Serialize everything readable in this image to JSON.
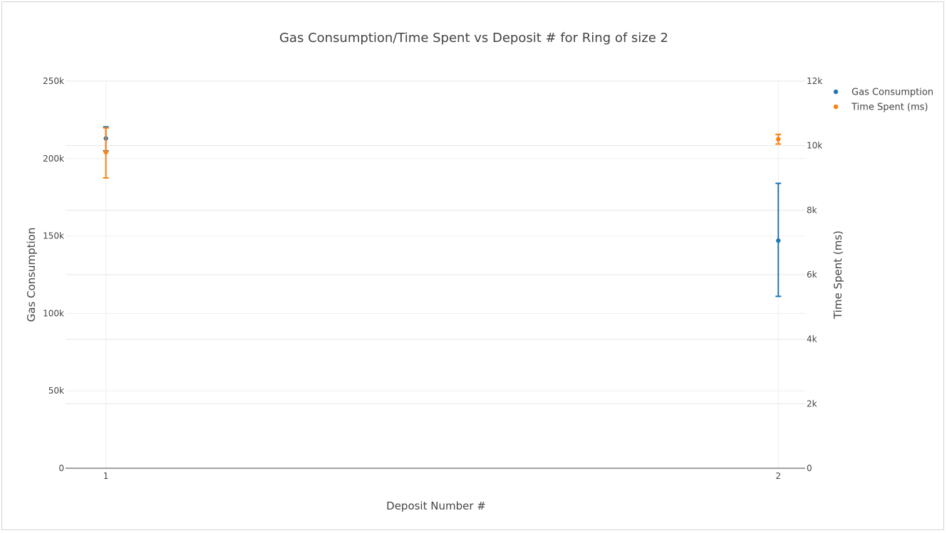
{
  "chart_data": {
    "type": "scatter",
    "title": "Gas Consumption/Time Spent vs Deposit # for Ring of size 2",
    "xlabel": "Deposit Number #",
    "ylabel": "Gas Consumption",
    "y2label": "Time Spent (ms)",
    "x_ticks": [
      "1",
      "2"
    ],
    "y_ticks": [
      "0",
      "50k",
      "100k",
      "150k",
      "200k",
      "250k"
    ],
    "y2_ticks": [
      "0",
      "2k",
      "4k",
      "6k",
      "8k",
      "10k",
      "12k"
    ],
    "ylim": [
      0,
      250000
    ],
    "y2lim": [
      0,
      12000
    ],
    "xlim": [
      0.94,
      2.04
    ],
    "grid": true,
    "legend_position": "top-right",
    "series": [
      {
        "name": "Gas Consumption",
        "axis": "y",
        "color": "#1f77b4",
        "x": [
          1,
          2
        ],
        "y": [
          213000,
          147000
        ],
        "error_low": [
          205000,
          111000
        ],
        "error_high": [
          220500,
          184000
        ]
      },
      {
        "name": "Time Spent (ms)",
        "axis": "y2",
        "color": "#ff7f0e",
        "x": [
          1,
          2
        ],
        "y": [
          9800,
          10200
        ],
        "error_low": [
          9000,
          10050
        ],
        "error_high": [
          10550,
          10350
        ]
      }
    ]
  }
}
